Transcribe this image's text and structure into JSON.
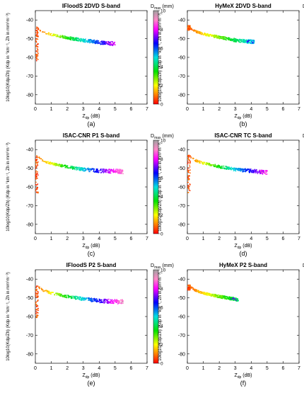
{
  "figure": {
    "colorbar": {
      "label_main": "D",
      "label_sub": "max",
      "label_unit": " (mm)",
      "ticks": [
        "0",
        "2",
        "4",
        "6",
        "8",
        "10"
      ],
      "min": 0,
      "max": 10
    }
  },
  "chart_data": [
    {
      "type": "scatter",
      "title": "IFloodS 2DVD S-band",
      "panel_label": "(a)",
      "xlabel": "Z",
      "xlabel_sub": "dp",
      "xlabel_unit": "  (dB)",
      "ylabel": "10log10(Kdp/Zh) (Kdp in °km⁻¹, Zh in mm⁶m⁻³)",
      "xlim": [
        0,
        7
      ],
      "ylim": [
        -85,
        -35
      ],
      "xticks": [
        "0",
        "1",
        "2",
        "3",
        "4",
        "5",
        "6",
        "7"
      ],
      "yticks": [
        "-40",
        "-50",
        "-60",
        "-70",
        "-80"
      ],
      "color_variable": "Dmax (mm)",
      "x_extent": [
        0,
        5.0
      ],
      "trend": [
        [
          0.05,
          -44.0
        ],
        [
          0.5,
          -46.5
        ],
        [
          1.0,
          -47.8
        ],
        [
          2.0,
          -49.6
        ],
        [
          3.0,
          -50.9
        ],
        [
          4.0,
          -52.0
        ],
        [
          5.0,
          -52.7
        ]
      ],
      "low_zdp_tail": [
        [
          0.05,
          -43.0
        ],
        [
          0.1,
          -50.0
        ],
        [
          0.15,
          -56.0
        ],
        [
          0.2,
          -62.0
        ]
      ],
      "dmax_range": [
        0.5,
        8.5
      ]
    },
    {
      "type": "scatter",
      "title": "HyMeX 2DVD S-band",
      "panel_label": "(b)",
      "xlabel": "Z",
      "xlabel_sub": "dp",
      "xlabel_unit": "  (dB)",
      "ylabel": "10log10(Kdp/Zh) (Kdp in °km⁻¹, Zh in mm⁶m⁻³)",
      "xlim": [
        0,
        7
      ],
      "ylim": [
        -85,
        -35
      ],
      "xticks": [
        "0",
        "1",
        "2",
        "3",
        "4",
        "5",
        "6",
        "7"
      ],
      "yticks": [
        "-40",
        "-50",
        "-60",
        "-70",
        "-80"
      ],
      "color_variable": "Dmax (mm)",
      "x_extent": [
        0,
        4.2
      ],
      "trend": [
        [
          0.05,
          -43.5
        ],
        [
          0.5,
          -46.0
        ],
        [
          1.0,
          -47.5
        ],
        [
          2.0,
          -49.3
        ],
        [
          3.0,
          -50.8
        ],
        [
          4.2,
          -51.8
        ]
      ],
      "low_zdp_tail": [
        [
          0.05,
          -43.0
        ],
        [
          0.1,
          -45.5
        ]
      ],
      "dmax_range": [
        0.5,
        7.0
      ]
    },
    {
      "type": "scatter",
      "title": "ISAC-CNR P1 S-band",
      "panel_label": "(c)",
      "xlabel": "Z",
      "xlabel_sub": "dp",
      "xlabel_unit": "  (dB)",
      "ylabel": "10log10(Kdp/Zh) (Kdp in °km⁻¹, Zh in mm⁶m⁻³)",
      "xlim": [
        0,
        7
      ],
      "ylim": [
        -85,
        -35
      ],
      "xticks": [
        "0",
        "1",
        "2",
        "3",
        "4",
        "5",
        "6",
        "7"
      ],
      "yticks": [
        "-40",
        "-50",
        "-60",
        "-70",
        "-80"
      ],
      "color_variable": "Dmax (mm)",
      "x_extent": [
        0,
        5.5
      ],
      "trend": [
        [
          0.05,
          -43.5
        ],
        [
          0.5,
          -46.0
        ],
        [
          1.0,
          -47.5
        ],
        [
          2.0,
          -49.3
        ],
        [
          3.0,
          -50.6
        ],
        [
          4.0,
          -51.4
        ],
        [
          5.5,
          -51.8
        ]
      ],
      "low_zdp_tail": [
        [
          0.05,
          -44.0
        ],
        [
          0.1,
          -52.0
        ],
        [
          0.15,
          -60.0
        ],
        [
          0.2,
          -64.0
        ]
      ],
      "dmax_range": [
        0.5,
        9.0
      ]
    },
    {
      "type": "scatter",
      "title": "ISAC-CNR TC S-band",
      "panel_label": "(d)",
      "xlabel": "Z",
      "xlabel_sub": "dp",
      "xlabel_unit": "  (dB)",
      "ylabel": "10log10(Kdp/Zh) (Kdp in °km⁻¹, Zh in mm⁶m⁻³)",
      "xlim": [
        0,
        7
      ],
      "ylim": [
        -85,
        -35
      ],
      "xticks": [
        "0",
        "1",
        "2",
        "3",
        "4",
        "5",
        "6",
        "7"
      ],
      "yticks": [
        "-40",
        "-50",
        "-60",
        "-70",
        "-80"
      ],
      "color_variable": "Dmax (mm)",
      "x_extent": [
        0,
        5.0
      ],
      "trend": [
        [
          0.05,
          -43.0
        ],
        [
          0.5,
          -45.8
        ],
        [
          1.0,
          -47.3
        ],
        [
          2.0,
          -49.2
        ],
        [
          3.0,
          -50.6
        ],
        [
          4.0,
          -51.5
        ],
        [
          5.0,
          -52.3
        ]
      ],
      "low_zdp_tail": [
        [
          0.05,
          -43.0
        ],
        [
          0.1,
          -52.0
        ],
        [
          0.15,
          -60.0
        ],
        [
          0.2,
          -63.0
        ]
      ],
      "dmax_range": [
        0.5,
        9.0
      ]
    },
    {
      "type": "scatter",
      "title": "IFloodS P2 S-band",
      "panel_label": "(e)",
      "xlabel": "Z",
      "xlabel_sub": "dp",
      "xlabel_unit": "  (dB)",
      "ylabel": "10log10(Kdp/Zh) (Kdp in °km⁻¹, Zh in mm⁶m⁻³)",
      "xlim": [
        0,
        7
      ],
      "ylim": [
        -85,
        -35
      ],
      "xticks": [
        "0",
        "1",
        "2",
        "3",
        "4",
        "5",
        "6",
        "7"
      ],
      "yticks": [
        "-40",
        "-50",
        "-60",
        "-70",
        "-80"
      ],
      "color_variable": "Dmax (mm)",
      "x_extent": [
        0,
        5.5
      ],
      "trend": [
        [
          0.05,
          -43.5
        ],
        [
          0.5,
          -46.0
        ],
        [
          1.0,
          -47.5
        ],
        [
          2.0,
          -49.3
        ],
        [
          3.0,
          -50.6
        ],
        [
          4.0,
          -51.6
        ],
        [
          5.5,
          -52.2
        ]
      ],
      "low_zdp_tail": [
        [
          0.05,
          -43.0
        ],
        [
          0.1,
          -50.0
        ],
        [
          0.15,
          -58.0
        ],
        [
          0.2,
          -61.0
        ]
      ],
      "dmax_range": [
        0.5,
        9.0
      ]
    },
    {
      "type": "scatter",
      "title": "HyMeX P2 S-band",
      "panel_label": "(f)",
      "xlabel": "Z",
      "xlabel_sub": "dp",
      "xlabel_unit": "  (dB)",
      "ylabel": "10log10(Kdp/Zh) (Kdp in °km⁻¹, Zh in mm⁶m⁻³)",
      "xlim": [
        0,
        7
      ],
      "ylim": [
        -85,
        -35
      ],
      "xticks": [
        "0",
        "1",
        "2",
        "3",
        "4",
        "5",
        "6",
        "7"
      ],
      "yticks": [
        "-40",
        "-50",
        "-60",
        "-70",
        "-80"
      ],
      "color_variable": "Dmax (mm)",
      "x_extent": [
        0,
        3.2
      ],
      "trend": [
        [
          0.05,
          -43.5
        ],
        [
          0.5,
          -46.0
        ],
        [
          1.0,
          -47.5
        ],
        [
          2.0,
          -49.3
        ],
        [
          3.2,
          -51.0
        ]
      ],
      "low_zdp_tail": [
        [
          0.05,
          -43.0
        ],
        [
          0.1,
          -46.0
        ]
      ],
      "dmax_range": [
        0.5,
        7.0
      ]
    }
  ]
}
